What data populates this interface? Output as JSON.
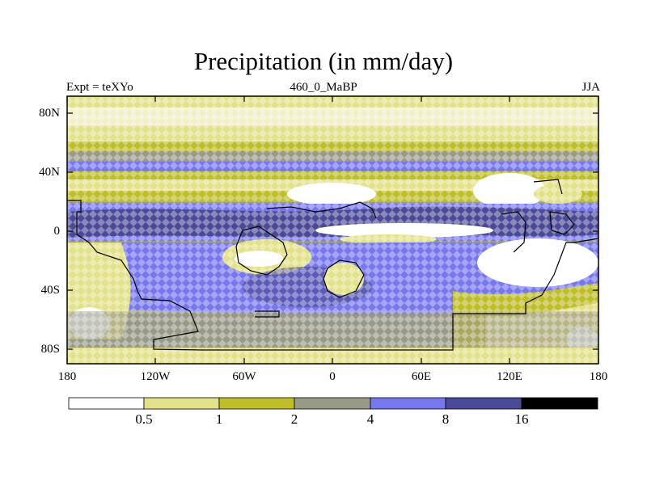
{
  "title": "Precipitation (in mm/day)",
  "subtitle_left": "Expt = teXYo",
  "subtitle_center": "460_0_MaBP",
  "subtitle_right": "JJA",
  "lat_labels": [
    "80N",
    "40N",
    "0",
    "40S",
    "80S"
  ],
  "lon_labels": [
    "180",
    "120W",
    "60W",
    "0",
    "60E",
    "120E",
    "180"
  ],
  "colorbar": {
    "labels": [
      "0.5",
      "1",
      "2",
      "4",
      "8",
      "16"
    ],
    "colors": [
      "#ffffff",
      "#e3e28a",
      "#bfbd2a",
      "#9a9a88",
      "#7777ee",
      "#4a4a98",
      "#000000"
    ]
  }
}
